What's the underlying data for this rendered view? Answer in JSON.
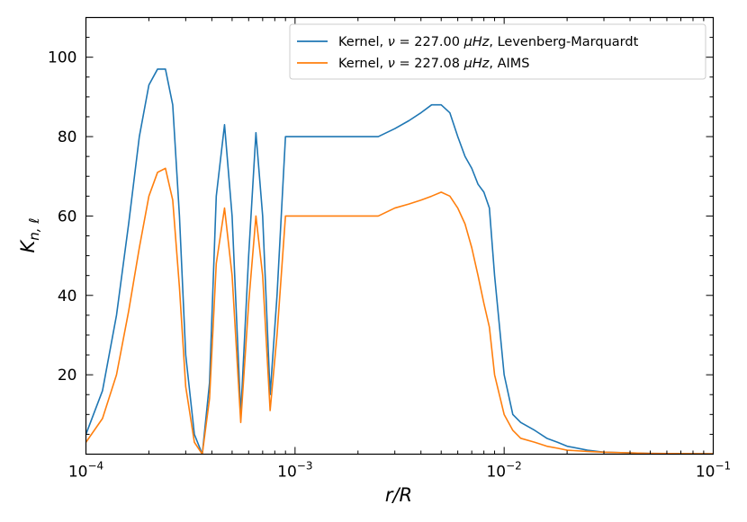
{
  "chart_data": {
    "type": "line",
    "xlabel": "r/R",
    "ylabel": "K_{n,ℓ}",
    "xscale": "log",
    "xlim": [
      0.0001,
      0.1
    ],
    "ylim": [
      0,
      110
    ],
    "xticks": [
      {
        "value": 0.0001,
        "base": "10",
        "exp": "−4"
      },
      {
        "value": 0.001,
        "base": "10",
        "exp": "−3"
      },
      {
        "value": 0.01,
        "base": "10",
        "exp": "−2"
      },
      {
        "value": 0.1,
        "base": "10",
        "exp": "−1"
      }
    ],
    "yticks": [
      20,
      40,
      60,
      80,
      100
    ],
    "grid": false,
    "legend_position": "top-right",
    "series": [
      {
        "name": "Kernel, ν = 227.00 μHz, Levenberg-Marquardt",
        "legend_parts": {
          "prefix": "Kernel, ",
          "nu": "ν",
          "eq": " = 227.00 ",
          "unit": "μHz",
          "suffix": ", Levenberg-Marquardt"
        },
        "color": "#1f77b4",
        "x": [
          0.0001,
          0.00012,
          0.00014,
          0.00016,
          0.00018,
          0.0002,
          0.00022,
          0.00024,
          0.00026,
          0.00028,
          0.0003,
          0.00033,
          0.00036,
          0.00039,
          0.00042,
          0.00046,
          0.0005,
          0.00055,
          0.0006,
          0.00065,
          0.0007,
          0.00076,
          0.00082,
          0.0009,
          0.001,
          0.0012,
          0.0015,
          0.002,
          0.0025,
          0.003,
          0.0035,
          0.004,
          0.0045,
          0.005,
          0.0055,
          0.006,
          0.0065,
          0.007,
          0.0075,
          0.008,
          0.0085,
          0.009,
          0.01,
          0.011,
          0.012,
          0.014,
          0.016,
          0.018,
          0.02,
          0.025,
          0.03,
          0.05,
          0.1
        ],
        "y": [
          5,
          16,
          35,
          58,
          80,
          93,
          97,
          97,
          88,
          60,
          25,
          5,
          0,
          18,
          65,
          83,
          60,
          10,
          50,
          81,
          60,
          15,
          40,
          80,
          80,
          80,
          80,
          80,
          80,
          82,
          84,
          86,
          88,
          88,
          86,
          80,
          75,
          72,
          68,
          66,
          62,
          45,
          20,
          10,
          8,
          6,
          4,
          3,
          2,
          1,
          0.5,
          0.2,
          0.1
        ]
      },
      {
        "name": "Kernel, ν = 227.08 μHz, AIMS",
        "legend_parts": {
          "prefix": "Kernel, ",
          "nu": "ν",
          "eq": " = 227.08 ",
          "unit": "μHz",
          "suffix": ",  AIMS"
        },
        "color": "#ff7f0e",
        "x": [
          0.0001,
          0.00012,
          0.00014,
          0.00016,
          0.00018,
          0.0002,
          0.00022,
          0.00024,
          0.00026,
          0.00028,
          0.0003,
          0.00033,
          0.00036,
          0.00039,
          0.00042,
          0.00046,
          0.0005,
          0.00055,
          0.0006,
          0.00065,
          0.0007,
          0.00076,
          0.00082,
          0.0009,
          0.001,
          0.0012,
          0.0015,
          0.002,
          0.0025,
          0.003,
          0.0035,
          0.004,
          0.0045,
          0.005,
          0.0055,
          0.006,
          0.0065,
          0.007,
          0.0075,
          0.008,
          0.0085,
          0.009,
          0.01,
          0.011,
          0.012,
          0.014,
          0.016,
          0.018,
          0.02,
          0.025,
          0.03,
          0.05,
          0.1
        ],
        "y": [
          3,
          9,
          20,
          36,
          52,
          65,
          71,
          72,
          64,
          42,
          17,
          3,
          0,
          14,
          48,
          62,
          45,
          8,
          38,
          60,
          45,
          11,
          30,
          60,
          60,
          60,
          60,
          60,
          60,
          62,
          63,
          64,
          65,
          66,
          65,
          62,
          58,
          52,
          45,
          38,
          32,
          20,
          10,
          6,
          4,
          3,
          2,
          1.5,
          1,
          0.7,
          0.5,
          0.2,
          0.1
        ]
      }
    ]
  }
}
